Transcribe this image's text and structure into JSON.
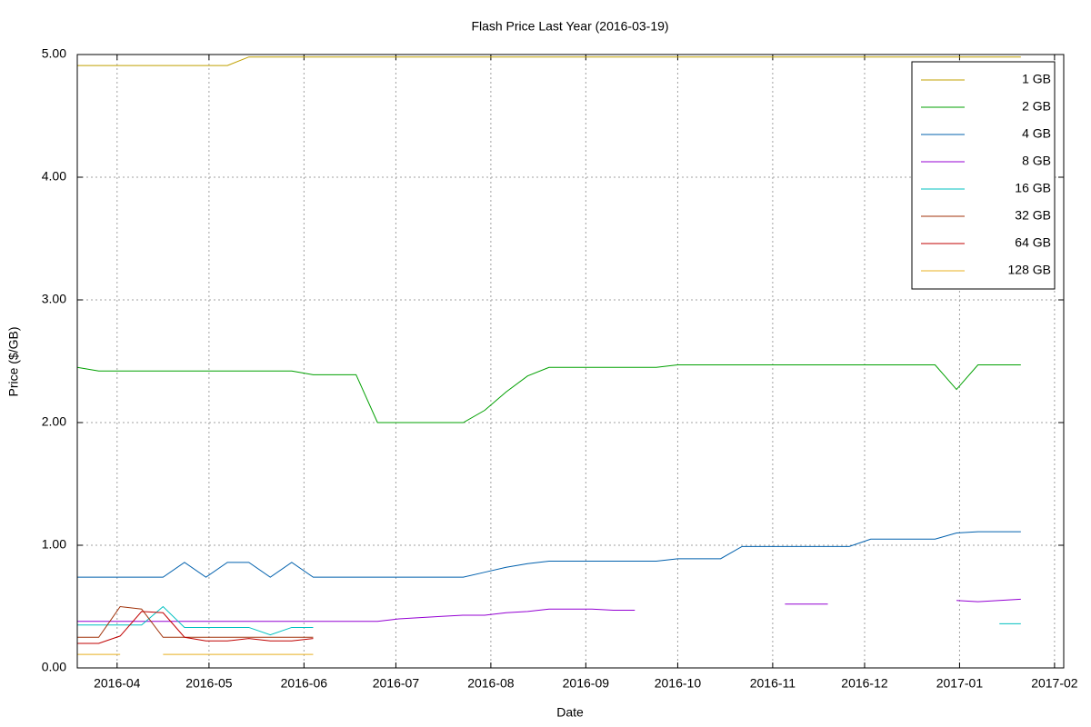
{
  "chart_data": {
    "type": "line",
    "title": "Flash Price Last Year (2016-03-19)",
    "xlabel": "Date",
    "ylabel": "Price ($/GB)",
    "x": [
      "2016-03-19",
      "2016-03-26",
      "2016-04-02",
      "2016-04-09",
      "2016-04-16",
      "2016-04-23",
      "2016-04-30",
      "2016-05-07",
      "2016-05-14",
      "2016-05-21",
      "2016-05-28",
      "2016-06-04",
      "2016-06-11",
      "2016-06-18",
      "2016-06-25",
      "2016-07-02",
      "2016-07-09",
      "2016-07-16",
      "2016-07-23",
      "2016-07-30",
      "2016-08-06",
      "2016-08-13",
      "2016-08-20",
      "2016-08-27",
      "2016-09-03",
      "2016-09-10",
      "2016-09-17",
      "2016-09-24",
      "2016-10-01",
      "2016-10-08",
      "2016-10-15",
      "2016-10-22",
      "2016-10-29",
      "2016-11-05",
      "2016-11-12",
      "2016-11-19",
      "2016-11-26",
      "2016-12-03",
      "2016-12-10",
      "2016-12-17",
      "2016-12-24",
      "2016-12-31",
      "2017-01-07",
      "2017-01-14",
      "2017-01-21"
    ],
    "series": [
      {
        "name": "1 GB",
        "color": "#c0a000",
        "values": [
          4.91,
          4.91,
          4.91,
          4.91,
          4.91,
          4.91,
          4.91,
          4.91,
          4.98,
          4.98,
          4.98,
          4.98,
          4.98,
          4.98,
          4.98,
          4.98,
          4.98,
          4.98,
          4.98,
          4.98,
          4.98,
          4.98,
          4.98,
          4.98,
          4.98,
          4.98,
          4.98,
          4.98,
          4.98,
          4.98,
          4.98,
          4.98,
          4.98,
          4.98,
          4.98,
          4.98,
          4.98,
          4.98,
          4.98,
          4.98,
          4.98,
          4.98,
          4.98,
          4.98,
          4.98
        ]
      },
      {
        "name": "2 GB",
        "color": "#00a000",
        "values": [
          2.45,
          2.42,
          2.42,
          2.42,
          2.42,
          2.42,
          2.42,
          2.42,
          2.42,
          2.42,
          2.42,
          2.39,
          2.39,
          2.39,
          2.0,
          2.0,
          2.0,
          2.0,
          2.0,
          2.1,
          2.25,
          2.38,
          2.45,
          2.45,
          2.45,
          2.45,
          2.45,
          2.45,
          2.47,
          2.47,
          2.47,
          2.47,
          2.47,
          2.47,
          2.47,
          2.47,
          2.47,
          2.47,
          2.47,
          2.47,
          2.47,
          2.27,
          2.47,
          2.47,
          2.47
        ]
      },
      {
        "name": "4 GB",
        "color": "#0060ad",
        "values": [
          0.74,
          0.74,
          0.74,
          0.74,
          0.74,
          0.86,
          0.74,
          0.86,
          0.86,
          0.74,
          0.86,
          0.74,
          0.74,
          0.74,
          0.74,
          0.74,
          0.74,
          0.74,
          0.74,
          0.78,
          0.82,
          0.85,
          0.87,
          0.87,
          0.87,
          0.87,
          0.87,
          0.87,
          0.89,
          0.89,
          0.89,
          0.99,
          0.99,
          0.99,
          0.99,
          0.99,
          0.99,
          1.05,
          1.05,
          1.05,
          1.05,
          1.1,
          1.11,
          1.11,
          1.11
        ]
      },
      {
        "name": "8 GB",
        "color": "#9400d3",
        "values": [
          0.38,
          0.38,
          0.38,
          0.38,
          0.38,
          0.38,
          0.38,
          0.38,
          0.38,
          0.38,
          0.38,
          0.38,
          0.38,
          0.38,
          0.38,
          0.4,
          0.41,
          0.42,
          0.43,
          0.43,
          0.45,
          0.46,
          0.48,
          0.48,
          0.48,
          0.47,
          0.47,
          null,
          null,
          null,
          null,
          null,
          null,
          0.52,
          0.52,
          0.52,
          null,
          null,
          null,
          null,
          null,
          0.55,
          0.54,
          0.55,
          0.56
        ]
      },
      {
        "name": "16 GB",
        "color": "#00c0c0",
        "values": [
          0.35,
          0.35,
          0.35,
          0.35,
          0.5,
          0.33,
          0.33,
          0.33,
          0.33,
          0.27,
          0.33,
          0.33,
          null,
          null,
          null,
          null,
          null,
          null,
          null,
          null,
          null,
          null,
          null,
          null,
          null,
          null,
          null,
          null,
          null,
          null,
          null,
          null,
          null,
          null,
          null,
          null,
          null,
          null,
          null,
          null,
          null,
          null,
          null,
          0.36,
          0.36
        ]
      },
      {
        "name": "32 GB",
        "color": "#a0320a",
        "values": [
          0.25,
          0.25,
          0.5,
          0.48,
          0.25,
          0.25,
          0.25,
          0.25,
          0.25,
          0.25,
          0.25,
          0.25,
          null,
          null,
          null,
          null,
          null,
          null,
          null,
          null,
          null,
          null,
          null,
          null,
          null,
          null,
          null,
          null,
          null,
          null,
          null,
          null,
          null,
          null,
          null,
          null,
          null,
          null,
          null,
          null,
          null,
          null,
          null,
          null,
          null
        ]
      },
      {
        "name": "64 GB",
        "color": "#c00000",
        "values": [
          0.2,
          0.2,
          0.26,
          0.46,
          0.45,
          0.25,
          0.22,
          0.22,
          0.24,
          0.22,
          0.22,
          0.24,
          null,
          null,
          null,
          null,
          null,
          null,
          null,
          null,
          null,
          null,
          null,
          null,
          null,
          null,
          null,
          null,
          null,
          null,
          null,
          null,
          null,
          null,
          null,
          null,
          null,
          null,
          null,
          null,
          null,
          null,
          null,
          null,
          null
        ]
      },
      {
        "name": "128 GB",
        "color": "#e8b020",
        "values": [
          0.11,
          0.11,
          0.11,
          null,
          0.11,
          0.11,
          0.11,
          0.11,
          0.11,
          0.11,
          0.11,
          0.11,
          null,
          null,
          null,
          null,
          null,
          null,
          null,
          null,
          null,
          null,
          null,
          null,
          null,
          null,
          null,
          null,
          null,
          null,
          null,
          null,
          null,
          null,
          null,
          null,
          null,
          null,
          null,
          null,
          null,
          null,
          null,
          null,
          null
        ]
      }
    ],
    "xlim": [
      "2016-03-19",
      "2017-02-04"
    ],
    "xticks": [
      {
        "value": "2016-04-01",
        "label": "2016-04"
      },
      {
        "value": "2016-05-01",
        "label": "2016-05"
      },
      {
        "value": "2016-06-01",
        "label": "2016-06"
      },
      {
        "value": "2016-07-01",
        "label": "2016-07"
      },
      {
        "value": "2016-08-01",
        "label": "2016-08"
      },
      {
        "value": "2016-09-01",
        "label": "2016-09"
      },
      {
        "value": "2016-10-01",
        "label": "2016-10"
      },
      {
        "value": "2016-11-01",
        "label": "2016-11"
      },
      {
        "value": "2016-12-01",
        "label": "2016-12"
      },
      {
        "value": "2017-01-01",
        "label": "2017-01"
      },
      {
        "value": "2017-02-01",
        "label": "2017-02"
      }
    ],
    "ylim": [
      0,
      5
    ],
    "yticks": [
      {
        "value": 0,
        "label": "0.00"
      },
      {
        "value": 1,
        "label": "1.00"
      },
      {
        "value": 2,
        "label": "2.00"
      },
      {
        "value": 3,
        "label": "3.00"
      },
      {
        "value": 4,
        "label": "4.00"
      },
      {
        "value": 5,
        "label": "5.00"
      }
    ],
    "grid": true,
    "legend": "top right"
  }
}
